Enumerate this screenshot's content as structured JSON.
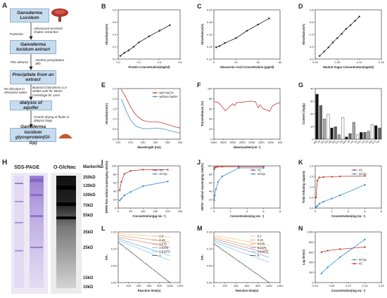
{
  "panelA": {
    "letter": "A",
    "steps": [
      "Ganoderma Lucidum",
      "Ganoderma lucidum extract",
      "Precipitate from an extract",
      "dialysis of aquifer",
      "Ganoderma lucidum glycoprotein(Gl-Gp)"
    ],
    "notes": {
      "pulverize": "Pulverize",
      "ultrasound": "Ultrasound-assisted shaker extraction",
      "ethanol": "75% ethanol",
      "alcohol": "Alcohol precipitation 48h",
      "redissolve": "Re-dissolve in deionized water",
      "butanol": "Butanol:Chloroform=1:4 Shake well for 30min Centrifuge for 1min",
      "freeze": "Freeze-drying of fluids in dialysis bags"
    }
  },
  "panelH": {
    "letter": "H",
    "lane1_title": "SDS-PAGE",
    "lane2_title": "O-GlcNac",
    "marker_header": "Marker/kD",
    "markers": [
      "250kD",
      "130kD",
      "100kD",
      "70kD",
      "55kD",
      "35kD",
      "25kD",
      "15kD",
      "10kD"
    ]
  },
  "chart_data": [
    {
      "id": "B",
      "type": "line",
      "xlabel": "Protein Concentration(mg/ml)",
      "ylabel": "Absorbance(A)",
      "xlim": [
        0,
        0.6
      ],
      "ylim": [
        0,
        0.8
      ],
      "xticks": [
        "0.0",
        "0.2",
        "0.4",
        "0.6"
      ],
      "yticks": [
        "0.0",
        "0.2",
        "0.4",
        "0.6",
        "0.8"
      ],
      "series": [
        {
          "color": "#222222",
          "x": [
            0.02,
            0.06,
            0.1,
            0.15,
            0.2,
            0.3,
            0.4,
            0.5
          ],
          "y": [
            0.05,
            0.1,
            0.14,
            0.2,
            0.27,
            0.37,
            0.46,
            0.55
          ]
        }
      ]
    },
    {
      "id": "C",
      "type": "line",
      "xlabel": "Glucuronic Acid Concentration (μg/ml)",
      "ylabel": "Absorbance(A)",
      "xlim": [
        0,
        60
      ],
      "ylim": [
        0.12,
        0.2
      ],
      "xticks": [
        "0",
        "20",
        "40",
        "60"
      ],
      "yticks": [
        "0.12",
        "0.14",
        "0.16",
        "0.18",
        "0.20"
      ],
      "series": [
        {
          "color": "#222222",
          "x": [
            2,
            5,
            10,
            20,
            30,
            40,
            50
          ],
          "y": [
            0.139,
            0.141,
            0.146,
            0.154,
            0.166,
            0.176,
            0.186
          ]
        }
      ]
    },
    {
      "id": "D",
      "type": "line",
      "xlabel": "Neutral Sugar Concentration(mg/ml)",
      "ylabel": "Absorbance(A)",
      "xlim": [
        0,
        0.15
      ],
      "ylim": [
        0,
        0.8
      ],
      "xticks": [
        "0.00",
        "0.05",
        "0.10",
        "0.15"
      ],
      "yticks": [
        "0.0",
        "0.2",
        "0.4",
        "0.6",
        "0.8"
      ],
      "series": [
        {
          "color": "#222222",
          "x": [
            0.01,
            0.02,
            0.03,
            0.04,
            0.05,
            0.06,
            0.07,
            0.08,
            0.09,
            0.1
          ],
          "y": [
            0.05,
            0.12,
            0.19,
            0.27,
            0.34,
            0.41,
            0.49,
            0.55,
            0.62,
            0.69
          ]
        }
      ]
    },
    {
      "id": "E",
      "type": "line",
      "xlabel": "Wavelength (nm)",
      "ylabel": "Absorbance(A)",
      "xlim": [
        200,
        300
      ],
      "ylim": [
        0,
        2.5
      ],
      "xticks": [
        "200",
        "220",
        "240",
        "260",
        "280",
        "300"
      ],
      "yticks": [
        "0.0",
        "0.5",
        "1.0",
        "1.5",
        "2.0",
        "2.5"
      ],
      "legend": [
        "with NaOH",
        "without NaOH"
      ],
      "series": [
        {
          "name": "with NaOH",
          "color": "#c0392b",
          "marker": "+",
          "x": [
            205,
            210,
            215,
            220,
            225,
            230,
            240,
            250,
            260,
            270,
            280,
            290,
            300
          ],
          "y": [
            2.45,
            2.2,
            1.9,
            1.6,
            1.35,
            1.15,
            0.92,
            0.86,
            0.86,
            0.82,
            0.72,
            0.62,
            0.55
          ]
        },
        {
          "name": "without NaOH",
          "color": "#3a8fd6",
          "x": [
            205,
            210,
            215,
            220,
            225,
            230,
            240,
            250,
            260,
            270,
            280,
            290,
            300
          ],
          "y": [
            2.0,
            1.6,
            1.25,
            0.95,
            0.75,
            0.62,
            0.52,
            0.52,
            0.55,
            0.52,
            0.45,
            0.37,
            0.3
          ]
        }
      ]
    },
    {
      "id": "F",
      "type": "line",
      "xlabel": "Wavenumber(cm⁻¹)",
      "ylabel": "Transmittance (%)",
      "xlim": [
        4000,
        500
      ],
      "ylim": [
        0,
        100
      ],
      "xticks": [
        "4000",
        "3500",
        "3000",
        "2500",
        "2000",
        "1500",
        "1000",
        "500"
      ],
      "yticks": [
        "0",
        "20",
        "40",
        "60",
        "80",
        "100"
      ],
      "series": [
        {
          "color": "#c0392b",
          "x": [
            4000,
            3800,
            3600,
            3400,
            3200,
            3000,
            2900,
            2800,
            2500,
            2300,
            2000,
            1800,
            1650,
            1550,
            1400,
            1200,
            1050,
            900,
            700,
            500
          ],
          "y": [
            74,
            73,
            66,
            56,
            63,
            70,
            66,
            72,
            73,
            74,
            75,
            74,
            62,
            68,
            60,
            58,
            55,
            66,
            70,
            72
          ]
        }
      ]
    },
    {
      "id": "G",
      "type": "bar",
      "ylabel": "Content (mg/g)",
      "ylim": [
        0,
        45
      ],
      "yticks": [
        "0",
        "10",
        "20",
        "30",
        "40"
      ],
      "categories": [
        "Asp",
        "Thr",
        "Ser",
        "Glu",
        "Gly",
        "Ala",
        "Cys",
        "Val",
        "Met",
        "Ile",
        "Leu",
        "Tyr",
        "Phe",
        "Lys",
        "His",
        "Arg",
        "Pro",
        "Trp"
      ],
      "values": [
        40,
        30,
        18,
        22,
        10,
        11,
        4,
        19,
        2,
        5,
        15,
        4,
        6,
        6,
        7,
        13,
        12,
        10
      ],
      "fills": [
        "#111111",
        "#666666",
        "#aaaaaa",
        "#ffffff",
        "#111111",
        "#666666",
        "#aaaaaa",
        "#ffffff",
        "#111111",
        "#666666",
        "#aaaaaa",
        "#ffffff",
        "#111111",
        "#666666",
        "#aaaaaa",
        "#ffffff",
        "#111111",
        "#666666"
      ]
    },
    {
      "id": "I",
      "type": "line",
      "xlabel": "Concentration(μg mL⁻¹)",
      "ylabel": "DPPH free radical scavenging rate(%)",
      "xlim": [
        0,
        250
      ],
      "ylim": [
        0,
        100
      ],
      "xticks": [
        "0",
        "50",
        "100",
        "150",
        "200",
        "250"
      ],
      "yticks": [
        "0",
        "20",
        "40",
        "60",
        "80",
        "100"
      ],
      "legend": [
        "VC",
        "Gl-Gp"
      ],
      "series": [
        {
          "name": "VC",
          "color": "#c0392b",
          "x": [
            6.25,
            12.5,
            25,
            50,
            100,
            200
          ],
          "y": [
            42,
            62,
            81,
            88,
            91,
            91
          ]
        },
        {
          "name": "Gl-Gp",
          "color": "#3a8fd6",
          "x": [
            6.25,
            12.5,
            25,
            50,
            100,
            200
          ],
          "y": [
            18,
            22,
            30,
            38,
            52,
            63
          ]
        }
      ]
    },
    {
      "id": "J",
      "type": "line",
      "xlabel": "Concentration(mg mL⁻¹)",
      "ylabel": "ABTS⁺ radical scavenging rate(%)",
      "xlim": [
        0,
        8
      ],
      "ylim": [
        0,
        100
      ],
      "xticks": [
        "0",
        "2",
        "4",
        "6",
        "8"
      ],
      "yticks": [
        "0",
        "20",
        "40",
        "60",
        "80",
        "100"
      ],
      "legend": [
        "VC",
        "Gl-Gp"
      ],
      "series": [
        {
          "name": "VC",
          "color": "#c0392b",
          "x": [
            0.05,
            0.1,
            0.25,
            0.5,
            1,
            3,
            6
          ],
          "y": [
            92,
            96,
            97,
            98,
            98,
            98,
            98
          ]
        },
        {
          "name": "Gl-Gp",
          "color": "#3a8fd6",
          "x": [
            0.05,
            0.1,
            0.25,
            0.5,
            1,
            3,
            6
          ],
          "y": [
            18,
            30,
            45,
            62,
            75,
            95,
            95
          ]
        }
      ]
    },
    {
      "id": "K",
      "type": "line",
      "xlabel": "Concentration(mg mL⁻¹)",
      "ylabel": "Total reducing capacity",
      "xlim": [
        0,
        8
      ],
      "ylim": [
        0,
        2.0
      ],
      "xticks": [
        "0",
        "2",
        "4",
        "6",
        "8"
      ],
      "yticks": [
        "0.0",
        "0.5",
        "1.0",
        "1.5",
        "2.0"
      ],
      "legend": [
        "VC",
        "Gl-Gp"
      ],
      "series": [
        {
          "name": "VC",
          "color": "#c0392b",
          "x": [
            0.1,
            0.25,
            0.5,
            1,
            2,
            3,
            6
          ],
          "y": [
            0.5,
            1.3,
            1.45,
            1.47,
            1.48,
            1.5,
            1.52
          ]
        },
        {
          "name": "Gl-Gp",
          "color": "#3a8fd6",
          "x": [
            0.1,
            0.25,
            0.5,
            1,
            2,
            3,
            6
          ],
          "y": [
            0.05,
            0.1,
            0.2,
            0.3,
            0.45,
            0.6,
            1.1
          ]
        }
      ]
    },
    {
      "id": "L",
      "type": "line",
      "xlabel": "Reaction time(s)",
      "ylabel": "F/F₀",
      "xlim": [
        0,
        1200
      ],
      "ylim": [
        0,
        0.15
      ],
      "xticks": [
        "0",
        "200",
        "400",
        "600",
        "800",
        "1000",
        "1200"
      ],
      "yticks": [
        "0.00",
        "0.05",
        "0.10",
        "0.15"
      ],
      "legend": [
        "0.3",
        "0.15",
        "0.075",
        "0.0375",
        "0.01875",
        "0"
      ],
      "series": [
        {
          "name": "0.3",
          "color": "#e8b04a",
          "x": [
            0,
            1000
          ],
          "y": [
            0.145,
            0.135
          ]
        },
        {
          "name": "0.15",
          "color": "#e07b39",
          "x": [
            0,
            1000
          ],
          "y": [
            0.14,
            0.12
          ]
        },
        {
          "name": "0.075",
          "color": "#d65a3a",
          "x": [
            0,
            1000
          ],
          "y": [
            0.135,
            0.105
          ]
        },
        {
          "name": "0.0375",
          "color": "#3a8fd6",
          "x": [
            0,
            1000
          ],
          "y": [
            0.13,
            0.08
          ]
        },
        {
          "name": "0.01875",
          "color": "#5bb0e8",
          "x": [
            0,
            1000
          ],
          "y": [
            0.125,
            0.065
          ]
        },
        {
          "name": "0",
          "color": "#111111",
          "x": [
            0,
            1000
          ],
          "y": [
            0.12,
            0.0
          ]
        }
      ]
    },
    {
      "id": "M",
      "type": "line",
      "xlabel": "Reaction time(s)",
      "ylabel": "F/F₀",
      "xlim": [
        0,
        1200
      ],
      "ylim": [
        0,
        0.15
      ],
      "xticks": [
        "0",
        "200",
        "400",
        "600",
        "800",
        "1000",
        "1200"
      ],
      "yticks": [
        "0.00",
        "0.05",
        "0.10",
        "0.15"
      ],
      "legend": [
        "0.3",
        "0.15",
        "0.075",
        "0.0375",
        "0.01875",
        "0"
      ],
      "series": [
        {
          "name": "0.3",
          "color": "#e8b04a",
          "x": [
            0,
            1000
          ],
          "y": [
            0.14,
            0.11
          ]
        },
        {
          "name": "0.15",
          "color": "#e07b39",
          "x": [
            0,
            1000
          ],
          "y": [
            0.135,
            0.095
          ]
        },
        {
          "name": "0.075",
          "color": "#d65a3a",
          "x": [
            0,
            1000
          ],
          "y": [
            0.13,
            0.085
          ]
        },
        {
          "name": "0.0375",
          "color": "#3a8fd6",
          "x": [
            0,
            1000
          ],
          "y": [
            0.125,
            0.075
          ]
        },
        {
          "name": "0.01875",
          "color": "#5bb0e8",
          "x": [
            0,
            1000
          ],
          "y": [
            0.12,
            0.06
          ]
        },
        {
          "name": "0",
          "color": "#111111",
          "x": [
            0,
            1000
          ],
          "y": [
            0.115,
            0.0
          ]
        }
      ]
    },
    {
      "id": "N",
      "type": "line",
      "xlabel": "Concentration(mg mL⁻¹)",
      "ylabel": "Lag time(s)",
      "xlim": [
        0,
        0.2
      ],
      "ylim": [
        0,
        1000
      ],
      "xticks": [
        "0.00",
        "0.05",
        "0.10",
        "0.15",
        "0.20"
      ],
      "yticks": [
        "0",
        "200",
        "400",
        "600",
        "800",
        "1000"
      ],
      "legend": [
        "Gl-Gp",
        "VC"
      ],
      "series": [
        {
          "name": "Gl-Gp",
          "color": "#3a8fd6",
          "x": [
            0.01875,
            0.0375,
            0.075,
            0.15
          ],
          "y": [
            180,
            300,
            500,
            850
          ]
        },
        {
          "name": "VC",
          "color": "#c0392b",
          "x": [
            0.01875,
            0.0375,
            0.075,
            0.15
          ],
          "y": [
            600,
            630,
            660,
            700
          ]
        }
      ]
    }
  ]
}
